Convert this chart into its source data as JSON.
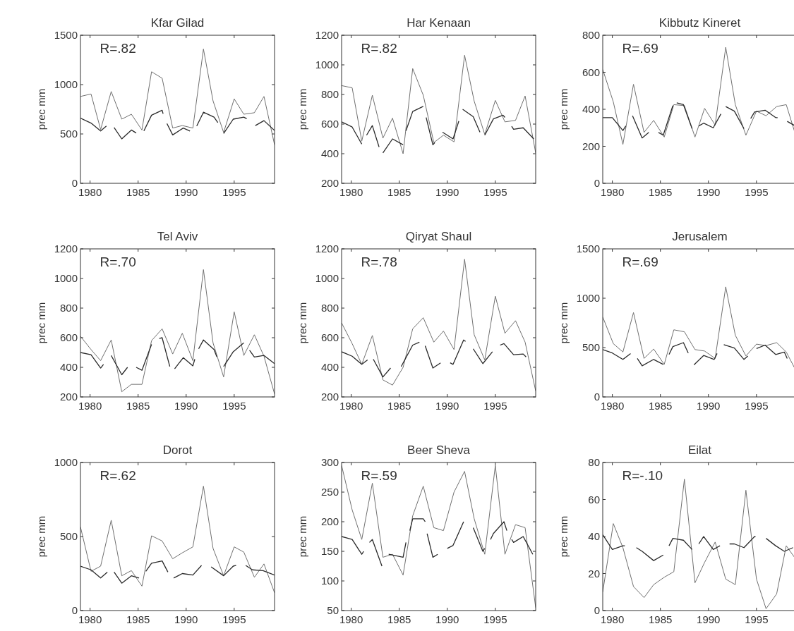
{
  "chart_data": [
    {
      "type": "line",
      "title": "Kfar Gilad",
      "ylabel": "prec mm",
      "xlim": [
        1979,
        1999.2
      ],
      "xticks": [
        1980,
        1985,
        1990,
        1995
      ],
      "ylim": [
        0,
        1500
      ],
      "yticks": [
        0,
        500,
        1000,
        1500
      ],
      "annotations": [
        "R=.82"
      ],
      "series": [
        {
          "color": "#707070",
          "x": [
            1979,
            1980.1,
            1981.1,
            1982.2,
            1983.3,
            1984.3,
            1985.4,
            1986.4,
            1987.5,
            1988.6,
            1989.6,
            1990.7,
            1991.8,
            1992.8,
            1993.9,
            1995,
            1996,
            1997.1,
            1998.1,
            1999.2
          ],
          "values": [
            880,
            905,
            545,
            930,
            650,
            700,
            540,
            1130,
            1065,
            560,
            585,
            560,
            1360,
            835,
            515,
            855,
            700,
            715,
            880,
            390
          ]
        },
        {
          "color": "#2a2a2a",
          "x": [
            1979,
            1980.1,
            1981.1,
            1981.7,
            null,
            1982.5,
            1983.3,
            1984.3,
            1984.8,
            null,
            1985.6,
            1986.4,
            1987.5,
            1987.6,
            null,
            1988,
            1988.6,
            1989.7,
            1990.4,
            null,
            1991.1,
            1991.8,
            1992.9,
            1993.3,
            null,
            1993.9,
            1994.9,
            1996,
            1996.3,
            null,
            1997.2,
            1998.1,
            1999.2
          ],
          "values": [
            660,
            610,
            530,
            580,
            null,
            565,
            450,
            540,
            510,
            null,
            530,
            690,
            740,
            705,
            null,
            605,
            490,
            560,
            530,
            null,
            580,
            720,
            670,
            615,
            null,
            505,
            650,
            670,
            655,
            null,
            585,
            635,
            535
          ]
        }
      ]
    },
    {
      "type": "line",
      "title": "Har Kenaan",
      "ylabel": "prec mm",
      "xlim": [
        1979,
        1999.2
      ],
      "xticks": [
        1980,
        1985,
        1990,
        1995
      ],
      "ylim": [
        200,
        1200
      ],
      "yticks": [
        200,
        400,
        600,
        800,
        1000,
        1200
      ],
      "annotations": [
        "R=.82"
      ],
      "series": [
        {
          "color": "#707070",
          "x": [
            1979,
            1980.1,
            1981.1,
            1982.2,
            1983.3,
            1984.3,
            1985.4,
            1986.4,
            1987.5,
            1988.6,
            1989.6,
            1990.7,
            1991.8,
            1992.8,
            1993.9,
            1995,
            1996,
            1997.1,
            1998.1,
            1999.2
          ],
          "values": [
            860,
            845,
            485,
            795,
            505,
            640,
            400,
            975,
            795,
            475,
            525,
            480,
            1065,
            755,
            530,
            760,
            615,
            625,
            790,
            405
          ]
        },
        {
          "color": "#2a2a2a",
          "x": [
            1979,
            1980.1,
            1981.1,
            null,
            1981.6,
            1982.2,
            1982.9,
            null,
            1983.3,
            1984.3,
            1985.4,
            null,
            1985.7,
            1986.4,
            1987.5,
            null,
            1987.8,
            1988.5,
            1988.7,
            null,
            1989.5,
            1990.6,
            1991.2,
            null,
            1991.6,
            1992.7,
            1993.4,
            null,
            1993.9,
            1994.8,
            1995.8,
            1996,
            null,
            1996.7,
            1996.9,
            1997.9,
            1999
          ],
          "values": [
            615,
            580,
            465,
            null,
            525,
            590,
            445,
            null,
            405,
            500,
            460,
            null,
            555,
            685,
            720,
            null,
            645,
            460,
            475,
            null,
            545,
            500,
            620,
            null,
            700,
            650,
            545,
            null,
            525,
            635,
            660,
            645,
            null,
            585,
            565,
            575,
            500
          ]
        }
      ]
    },
    {
      "type": "line",
      "title": "Kibbutz Kineret",
      "ylabel": "prec mm",
      "xlim": [
        1979,
        1999.2
      ],
      "xticks": [
        1980,
        1985,
        1990,
        1995
      ],
      "ylim": [
        0,
        800
      ],
      "yticks": [
        0,
        200,
        400,
        600,
        800
      ],
      "annotations": [
        "R=.69"
      ],
      "series": [
        {
          "color": "#707070",
          "x": [
            1979,
            1980.1,
            1981.1,
            1982.2,
            1983.3,
            1984.3,
            1985.4,
            1986.4,
            1987.5,
            1988.6,
            1989.6,
            1990.7,
            1991.8,
            1992.8,
            1993.9,
            1995,
            1996,
            1997.1,
            1998.1,
            1999.2
          ],
          "values": [
            615,
            440,
            210,
            535,
            275,
            340,
            250,
            425,
            420,
            250,
            405,
            315,
            735,
            425,
            260,
            390,
            365,
            415,
            425,
            240
          ]
        },
        {
          "color": "#2a2a2a",
          "x": [
            1979,
            1980,
            1981.1,
            1981.4,
            null,
            1982.1,
            1983.1,
            1983.8,
            null,
            1984.8,
            1985.3,
            1986.3,
            null,
            1986.7,
            1987.4,
            1988.3,
            null,
            1989,
            1989.5,
            1990.5,
            1991.3,
            null,
            1991.8,
            1992.7,
            1993.7,
            null,
            1994.4,
            1994.8,
            1995.9,
            1997,
            1997.2,
            null,
            1998.2,
            1999.2
          ],
          "values": [
            355,
            355,
            285,
            310,
            null,
            365,
            245,
            275,
            null,
            275,
            260,
            420,
            null,
            435,
            425,
            295,
            null,
            310,
            325,
            300,
            375,
            null,
            415,
            390,
            295,
            null,
            350,
            385,
            395,
            355,
            355,
            null,
            335,
            305
          ]
        }
      ]
    },
    {
      "type": "line",
      "title": "Tel Aviv",
      "ylabel": "prec mm",
      "xlim": [
        1979,
        1999.2
      ],
      "xticks": [
        1980,
        1985,
        1990,
        1995
      ],
      "ylim": [
        200,
        1200
      ],
      "yticks": [
        200,
        400,
        600,
        800,
        1000,
        1200
      ],
      "annotations": [
        "R=.70"
      ],
      "series": [
        {
          "color": "#707070",
          "x": [
            1979,
            1980.1,
            1981.1,
            1982.2,
            1983.3,
            1984.3,
            1985.4,
            1986.4,
            1987.5,
            1988.6,
            1989.6,
            1990.7,
            1991.8,
            1992.8,
            1993.9,
            1995,
            1996,
            1997.1,
            1998.1,
            1999.2
          ],
          "values": [
            610,
            520,
            445,
            585,
            235,
            285,
            285,
            580,
            660,
            490,
            630,
            445,
            1060,
            565,
            335,
            775,
            480,
            620,
            475,
            220
          ]
        },
        {
          "color": "#2a2a2a",
          "x": [
            1979,
            1980.1,
            1981.1,
            1981.4,
            null,
            1982.2,
            1983.3,
            1983.9,
            null,
            1984.8,
            1985.4,
            1986.4,
            null,
            1987.2,
            1987.5,
            1988.3,
            null,
            1988.8,
            1989.7,
            1990.7,
            1990.9,
            null,
            1991.3,
            1991.8,
            1992.9,
            1993.2,
            null,
            1993.9,
            1994.9,
            1996,
            null,
            1996.6,
            1997.1,
            1998.1,
            1999.2
          ],
          "values": [
            500,
            485,
            395,
            420,
            null,
            480,
            350,
            400,
            null,
            400,
            380,
            555,
            null,
            595,
            600,
            405,
            null,
            390,
            465,
            410,
            455,
            null,
            525,
            585,
            520,
            470,
            null,
            405,
            505,
            565,
            null,
            515,
            470,
            480,
            425
          ]
        }
      ]
    },
    {
      "type": "line",
      "title": "Qiryat Shaul",
      "ylabel": "prec mm",
      "xlim": [
        1979,
        1999.2
      ],
      "xticks": [
        1980,
        1985,
        1990,
        1995
      ],
      "ylim": [
        200,
        1200
      ],
      "yticks": [
        200,
        400,
        600,
        800,
        1000,
        1200
      ],
      "annotations": [
        "R=.78"
      ],
      "series": [
        {
          "color": "#707070",
          "x": [
            1979,
            1980.1,
            1981.1,
            1982.2,
            1983.3,
            1984.3,
            1985.4,
            1986.4,
            1987.5,
            1988.6,
            1989.6,
            1990.7,
            1991.8,
            1992.8,
            1993.9,
            1995,
            1996,
            1997.1,
            1998.1,
            1999.2
          ],
          "values": [
            700,
            560,
            420,
            615,
            315,
            280,
            400,
            660,
            735,
            570,
            645,
            520,
            1130,
            620,
            450,
            880,
            630,
            715,
            570,
            240
          ]
        },
        {
          "color": "#2a2a2a",
          "x": [
            1979,
            1980.1,
            1981.1,
            1981.7,
            null,
            1982.3,
            1983.3,
            1984.1,
            null,
            1985.2,
            1986.4,
            1987.1,
            null,
            1987.7,
            1988.5,
            1989.3,
            null,
            1990.3,
            1990.6,
            1991.7,
            1991.9,
            null,
            1992.7,
            1993.7,
            1994.7,
            null,
            1995.5,
            1995.9,
            1996.9,
            1997.9,
            1998.2
          ],
          "values": [
            505,
            475,
            420,
            450,
            null,
            455,
            335,
            395,
            null,
            405,
            550,
            570,
            null,
            545,
            395,
            430,
            null,
            430,
            420,
            585,
            575,
            null,
            525,
            425,
            505,
            null,
            550,
            560,
            485,
            490,
            470
          ]
        }
      ]
    },
    {
      "type": "line",
      "title": "Jerusalem",
      "ylabel": "prec mm",
      "xlim": [
        1979,
        1999.2
      ],
      "xticks": [
        1980,
        1985,
        1990,
        1995
      ],
      "ylim": [
        0,
        1500
      ],
      "yticks": [
        0,
        500,
        1000,
        1500
      ],
      "annotations": [
        "R=.69"
      ],
      "series": [
        {
          "color": "#707070",
          "x": [
            1979,
            1980.1,
            1981.1,
            1982.2,
            1983.3,
            1984.3,
            1985.4,
            1986.4,
            1987.5,
            1988.6,
            1989.6,
            1990.7,
            1991.8,
            1992.8,
            1993.9,
            1995,
            1996,
            1997.1,
            1998.1,
            1999.2
          ],
          "values": [
            810,
            540,
            455,
            855,
            390,
            485,
            330,
            680,
            660,
            480,
            465,
            390,
            1115,
            625,
            415,
            535,
            520,
            550,
            455,
            250
          ]
        },
        {
          "color": "#2a2a2a",
          "x": [
            1979,
            1980,
            1981.1,
            1981.9,
            null,
            1982.6,
            1983.1,
            1984.3,
            1985.3,
            null,
            1985.9,
            1986.3,
            1987.4,
            1987.9,
            null,
            1988.5,
            1989.5,
            1990.6,
            1990.9,
            null,
            1991.6,
            1992.7,
            1993.7,
            1994.1,
            null,
            1995,
            1995.9,
            1997,
            1997.9,
            1998.2
          ],
          "values": [
            480,
            445,
            380,
            440,
            null,
            390,
            315,
            380,
            330,
            null,
            430,
            510,
            550,
            445,
            null,
            325,
            420,
            380,
            440,
            null,
            530,
            495,
            380,
            415,
            null,
            490,
            525,
            430,
            455,
            390
          ]
        }
      ]
    },
    {
      "type": "line",
      "title": "Dorot",
      "ylabel": "prec mm",
      "xlim": [
        1979,
        1999.2
      ],
      "xticks": [
        1980,
        1985,
        1990,
        1995
      ],
      "ylim": [
        0,
        1000
      ],
      "yticks": [
        0,
        500,
        1000
      ],
      "annotations": [
        "R=.62"
      ],
      "series": [
        {
          "color": "#707070",
          "x": [
            1979,
            1980.1,
            1981.1,
            1982.2,
            1983.3,
            1984.3,
            1985.4,
            1986.4,
            1987.5,
            1988.6,
            1989.6,
            1990.7,
            1991.8,
            1992.8,
            1993.9,
            1995,
            1996,
            1997.1,
            1998.1,
            1999.2
          ],
          "values": [
            565,
            265,
            300,
            610,
            235,
            270,
            165,
            505,
            470,
            350,
            390,
            430,
            840,
            420,
            235,
            430,
            395,
            225,
            315,
            120
          ]
        },
        {
          "color": "#2a2a2a",
          "x": [
            1979,
            1980.1,
            1981.1,
            1981.8,
            null,
            1982.5,
            1983.3,
            1984.3,
            1985.1,
            null,
            1985.8,
            1986.4,
            1987.5,
            1988.1,
            null,
            1988.7,
            1989.6,
            1990.7,
            1991.6,
            null,
            1992.6,
            1993.9,
            1994.9,
            1995.2,
            null,
            1996.2,
            1996.9,
            1998,
            1999.2
          ],
          "values": [
            300,
            275,
            220,
            260,
            null,
            260,
            185,
            235,
            220,
            null,
            265,
            320,
            335,
            260,
            null,
            220,
            250,
            240,
            305,
            null,
            295,
            235,
            300,
            305,
            null,
            305,
            275,
            270,
            240
          ]
        }
      ]
    },
    {
      "type": "line",
      "title": "Beer Sheva",
      "ylabel": "prec mm",
      "xlim": [
        1979,
        1999.2
      ],
      "xticks": [
        1980,
        1985,
        1990,
        1995
      ],
      "ylim": [
        50,
        300
      ],
      "yticks": [
        50,
        100,
        150,
        200,
        250,
        300
      ],
      "annotations": [
        "R=.59"
      ],
      "series": [
        {
          "color": "#707070",
          "x": [
            1979,
            1980.1,
            1981.1,
            1982.2,
            1983.3,
            1984.3,
            1985.4,
            1986.4,
            1987.5,
            1988.6,
            1989.6,
            1990.7,
            1991.8,
            1992.8,
            1993.9,
            1995,
            1996,
            1997.1,
            1998.1,
            1999.2
          ],
          "values": [
            295,
            220,
            170,
            265,
            140,
            145,
            110,
            210,
            260,
            190,
            185,
            250,
            285,
            205,
            145,
            295,
            145,
            195,
            190,
            55
          ]
        },
        {
          "color": "#2a2a2a",
          "x": [
            1979,
            1980.1,
            1981.1,
            1981.3,
            null,
            1981.9,
            1982.2,
            1983.2,
            null,
            1983.9,
            1985.4,
            1985.7,
            null,
            1986.1,
            1986.4,
            1987.5,
            1987.7,
            null,
            1987.9,
            1988.5,
            1989,
            null,
            1990,
            1990.6,
            1991.7,
            null,
            1992.7,
            1993.7,
            1993.9,
            null,
            1994.5,
            1994.8,
            1995.9,
            1996.2,
            null,
            1996.7,
            1996.9,
            1997.9,
            1998.9
          ],
          "values": [
            175,
            170,
            145,
            150,
            null,
            165,
            170,
            125,
            null,
            145,
            140,
            165,
            null,
            185,
            205,
            205,
            200,
            null,
            180,
            140,
            145,
            null,
            155,
            160,
            200,
            null,
            190,
            150,
            155,
            null,
            170,
            180,
            200,
            185,
            null,
            170,
            165,
            175,
            145
          ]
        }
      ]
    },
    {
      "type": "line",
      "title": "Eilat",
      "ylabel": "prec mm",
      "xlim": [
        1979,
        1999.2
      ],
      "xticks": [
        1980,
        1985,
        1990,
        1995
      ],
      "ylim": [
        0,
        80
      ],
      "yticks": [
        0,
        20,
        40,
        60,
        80
      ],
      "annotations": [
        "R=-.10"
      ],
      "series": [
        {
          "color": "#707070",
          "x": [
            1979,
            1980.1,
            1981.1,
            1982.2,
            1983.3,
            1984.3,
            1985.4,
            1986.4,
            1987.5,
            1988.6,
            1989.6,
            1990.7,
            1991.8,
            1992.8,
            1993.9,
            1995,
            1996,
            1997.1,
            1998.1,
            1999.2
          ],
          "values": [
            10,
            47,
            34,
            13,
            7,
            14,
            18,
            21,
            71,
            15,
            26,
            37,
            17,
            14,
            65,
            17,
            1,
            9,
            35,
            27
          ]
        },
        {
          "color": "#2a2a2a",
          "x": [
            1979,
            1980,
            1981.1,
            1981.3,
            null,
            1982.5,
            1983.1,
            1984.3,
            1985.3,
            null,
            1985.9,
            1986.3,
            1987.4,
            1988.3,
            null,
            1989,
            1989.5,
            1990.5,
            1991.2,
            null,
            1992.2,
            1992.7,
            1993.7,
            1994.8,
            1994.9,
            null,
            1996,
            1997,
            1997.9,
            1998.8
          ],
          "values": [
            41,
            33,
            35,
            35,
            null,
            34,
            32,
            27,
            30,
            null,
            35,
            39,
            38,
            33,
            null,
            36,
            40,
            33,
            35,
            null,
            36,
            36,
            34,
            40,
            40,
            null,
            39,
            35,
            32,
            34
          ]
        }
      ]
    }
  ]
}
